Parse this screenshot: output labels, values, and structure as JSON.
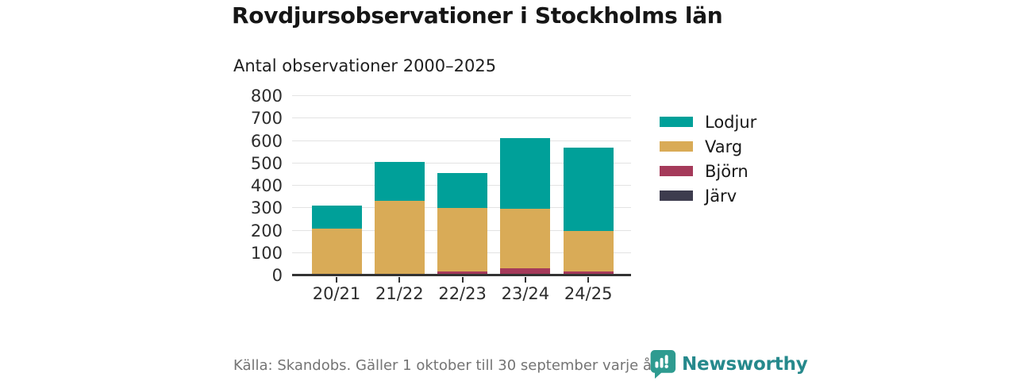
{
  "header": {
    "title": "Rovdjursobservationer i Stockholms län",
    "subtitle": "Antal observationer 2000–2025"
  },
  "chart_data": {
    "type": "bar",
    "stacked": true,
    "title": "Rovdjursobservationer i Stockholms län",
    "subtitle": "Antal observationer 2000–2025",
    "categories": [
      "20/21",
      "21/22",
      "22/23",
      "23/24",
      "24/25"
    ],
    "series": [
      {
        "name": "Lodjur",
        "color": "#00a099",
        "values": [
          100,
          172,
          158,
          316,
          370
        ]
      },
      {
        "name": "Varg",
        "color": "#d9ab57",
        "values": [
          202,
          325,
          283,
          265,
          184
        ]
      },
      {
        "name": "Björn",
        "color": "#a53a5a",
        "values": [
          7,
          7,
          16,
          31,
          15
        ]
      },
      {
        "name": "Järv",
        "color": "#3d3c4e",
        "values": [
          1,
          1,
          1,
          1,
          1
        ]
      }
    ],
    "stack_order_bottom_to_top": [
      "Järv",
      "Björn",
      "Varg",
      "Lodjur"
    ],
    "totals": [
      310,
      505,
      458,
      613,
      570
    ],
    "ylim": [
      0,
      800
    ],
    "yticks": [
      0,
      100,
      200,
      300,
      400,
      500,
      600,
      700,
      800
    ],
    "xlabel": "",
    "ylabel": "",
    "grid": "horizontal",
    "legend_position": "right",
    "colors": {
      "axis": "#333333",
      "gridline": "#e3e3e3",
      "tick_text": "#2d2d2d"
    }
  },
  "footer": {
    "source": "Källa: Skandobs. Gäller 1 oktober till 30 september varje år.",
    "brand": "Newsworthy",
    "brand_color": "#26898c",
    "logo_color": "#2e9b90"
  }
}
